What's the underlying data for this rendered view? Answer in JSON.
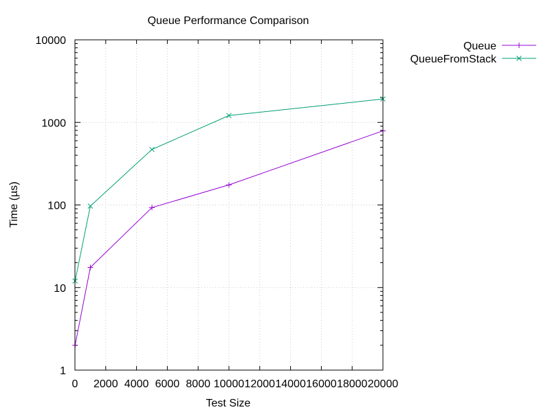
{
  "chart_data": {
    "type": "line",
    "title": "Queue Performance Comparison",
    "xlabel": "Test Size",
    "ylabel": "Time (µs)",
    "x_scale": "linear",
    "y_scale": "log",
    "xlim": [
      0,
      20000
    ],
    "ylim": [
      1,
      10000
    ],
    "x_ticks": [
      0,
      2000,
      4000,
      6000,
      8000,
      10000,
      12000,
      14000,
      16000,
      18000,
      20000
    ],
    "x_tick_labels": [
      "0",
      "2000",
      "4000",
      "6000",
      "8000",
      "10000",
      "12000",
      "14000",
      "16000",
      "18000",
      "20000"
    ],
    "y_ticks": [
      1,
      10,
      100,
      1000,
      10000
    ],
    "y_tick_labels": [
      "1",
      "10",
      "100",
      "1000",
      "10000"
    ],
    "grid": true,
    "legend_position": "top-right outside",
    "series": [
      {
        "name": "Queue",
        "color": "#9400d3",
        "marker": "plus",
        "x": [
          10,
          1000,
          5000,
          10000,
          20000
        ],
        "y": [
          2,
          17.5,
          93,
          175,
          790
        ]
      },
      {
        "name": "QueueFromStack",
        "color": "#009e73",
        "marker": "cross",
        "x": [
          10,
          1000,
          5000,
          10000,
          20000
        ],
        "y": [
          12,
          97,
          470,
          1210,
          1920
        ]
      }
    ]
  }
}
